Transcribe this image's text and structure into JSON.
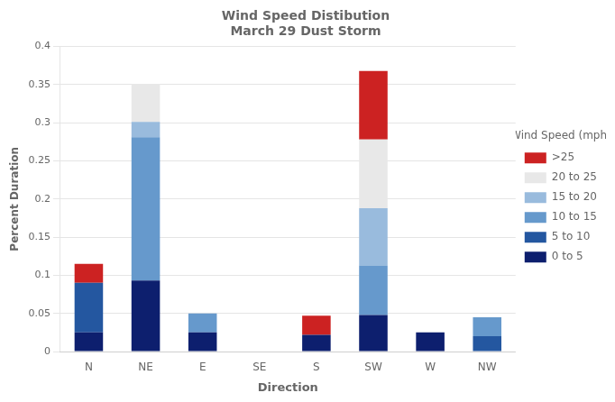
{
  "chart_data": {
    "type": "bar",
    "stacked": true,
    "title": "Wind Speed Distibution\nMarch 29 Dust Storm",
    "xlabel": "Direction",
    "ylabel": "Percent Duration",
    "legend_title": "Wind Speed (mph)",
    "legend": "right",
    "grid": true,
    "categories": [
      "N",
      "NE",
      "E",
      "SE",
      "S",
      "SW",
      "W",
      "NW"
    ],
    "series": [
      {
        "name": "0 to 5",
        "color": "#0d1f6e",
        "values": [
          0.025,
          0.093,
          0.025,
          0.0,
          0.022,
          0.048,
          0.025,
          0.0
        ]
      },
      {
        "name": "5 to 10",
        "color": "#2457a0",
        "values": [
          0.065,
          0.0,
          0.0,
          0.0,
          0.0,
          0.0,
          0.0,
          0.02
        ]
      },
      {
        "name": "10 to 15",
        "color": "#6699cc",
        "values": [
          0.0,
          0.188,
          0.025,
          0.0,
          0.0,
          0.065,
          0.0,
          0.025
        ]
      },
      {
        "name": "15 to 20",
        "color": "#99bbdd",
        "values": [
          0.0,
          0.02,
          0.0,
          0.0,
          0.0,
          0.075,
          0.0,
          0.0
        ]
      },
      {
        "name": "20 to 25",
        "color": "#e8e8e8",
        "values": [
          0.0,
          0.05,
          0.0,
          0.0,
          0.0,
          0.09,
          0.0,
          0.0
        ]
      },
      {
        "name": ">25",
        "color": "#cc2222",
        "values": [
          0.025,
          0.0,
          0.0,
          0.0,
          0.025,
          0.09,
          0.0,
          0.0
        ]
      }
    ],
    "ylim": [
      0,
      0.4
    ],
    "yticks": [
      0,
      0.05,
      0.1,
      0.15,
      0.2,
      0.25,
      0.3,
      0.35,
      0.4
    ]
  }
}
